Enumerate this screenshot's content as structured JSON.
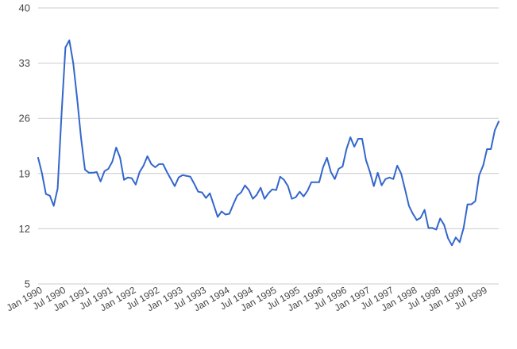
{
  "chart_data": {
    "type": "line",
    "title": "",
    "xlabel": "",
    "ylabel": "",
    "ylim": [
      5,
      40
    ],
    "yticks": [
      "5",
      "12",
      "19",
      "26",
      "33",
      "40"
    ],
    "grid": true,
    "legend": "none",
    "line_color": "#3366cc",
    "grid_color": "#cccccc",
    "xticks": [
      "Jan 1990",
      "Jul 1990",
      "Jan 1991",
      "Jul 1991",
      "Jan 1992",
      "Jul 1992",
      "Jan 1993",
      "Jul 1993",
      "Jan 1994",
      "Jul 1994",
      "Jan 1995",
      "Jul 1995",
      "Jan 1996",
      "Jul 1996",
      "Jan 1997",
      "Jul 1997",
      "Jan 1998",
      "Jul 1998",
      "Jan 1999",
      "Jul 1999"
    ],
    "x_start": "Jan 1990",
    "x_end": "Dec 1999",
    "series": [
      {
        "values": [
          21.0,
          19.0,
          16.4,
          16.2,
          14.9,
          17.1,
          26.5,
          35.0,
          35.9,
          33.0,
          28.5,
          23.5,
          19.5,
          19.1,
          19.1,
          19.2,
          18.0,
          19.3,
          19.6,
          20.5,
          22.3,
          21.0,
          18.2,
          18.5,
          18.4,
          17.6,
          19.2,
          20.0,
          21.2,
          20.2,
          19.8,
          20.2,
          20.2,
          19.2,
          18.3,
          17.4,
          18.5,
          18.8,
          18.7,
          18.6,
          17.7,
          16.7,
          16.6,
          15.9,
          16.5,
          15.0,
          13.5,
          14.2,
          13.8,
          13.9,
          15.1,
          16.2,
          16.6,
          17.5,
          16.9,
          15.8,
          16.3,
          17.2,
          15.8,
          16.5,
          17.0,
          16.9,
          18.6,
          18.2,
          17.4,
          15.8,
          16.0,
          16.7,
          16.1,
          16.8,
          17.9,
          17.9,
          17.9,
          19.8,
          21.0,
          19.2,
          18.3,
          19.6,
          19.9,
          22.1,
          23.6,
          22.4,
          23.4,
          23.4,
          20.7,
          19.2,
          17.4,
          19.1,
          17.5,
          18.3,
          18.5,
          18.3,
          20.0,
          19.0,
          17.0,
          14.9,
          13.9,
          13.1,
          13.4,
          14.4,
          12.1,
          12.1,
          11.9,
          13.3,
          12.5,
          10.8,
          9.9,
          10.9,
          10.3,
          12.1,
          15.1,
          15.1,
          15.5,
          18.8,
          20.0,
          22.1,
          22.1,
          24.5,
          25.6
        ]
      }
    ]
  }
}
